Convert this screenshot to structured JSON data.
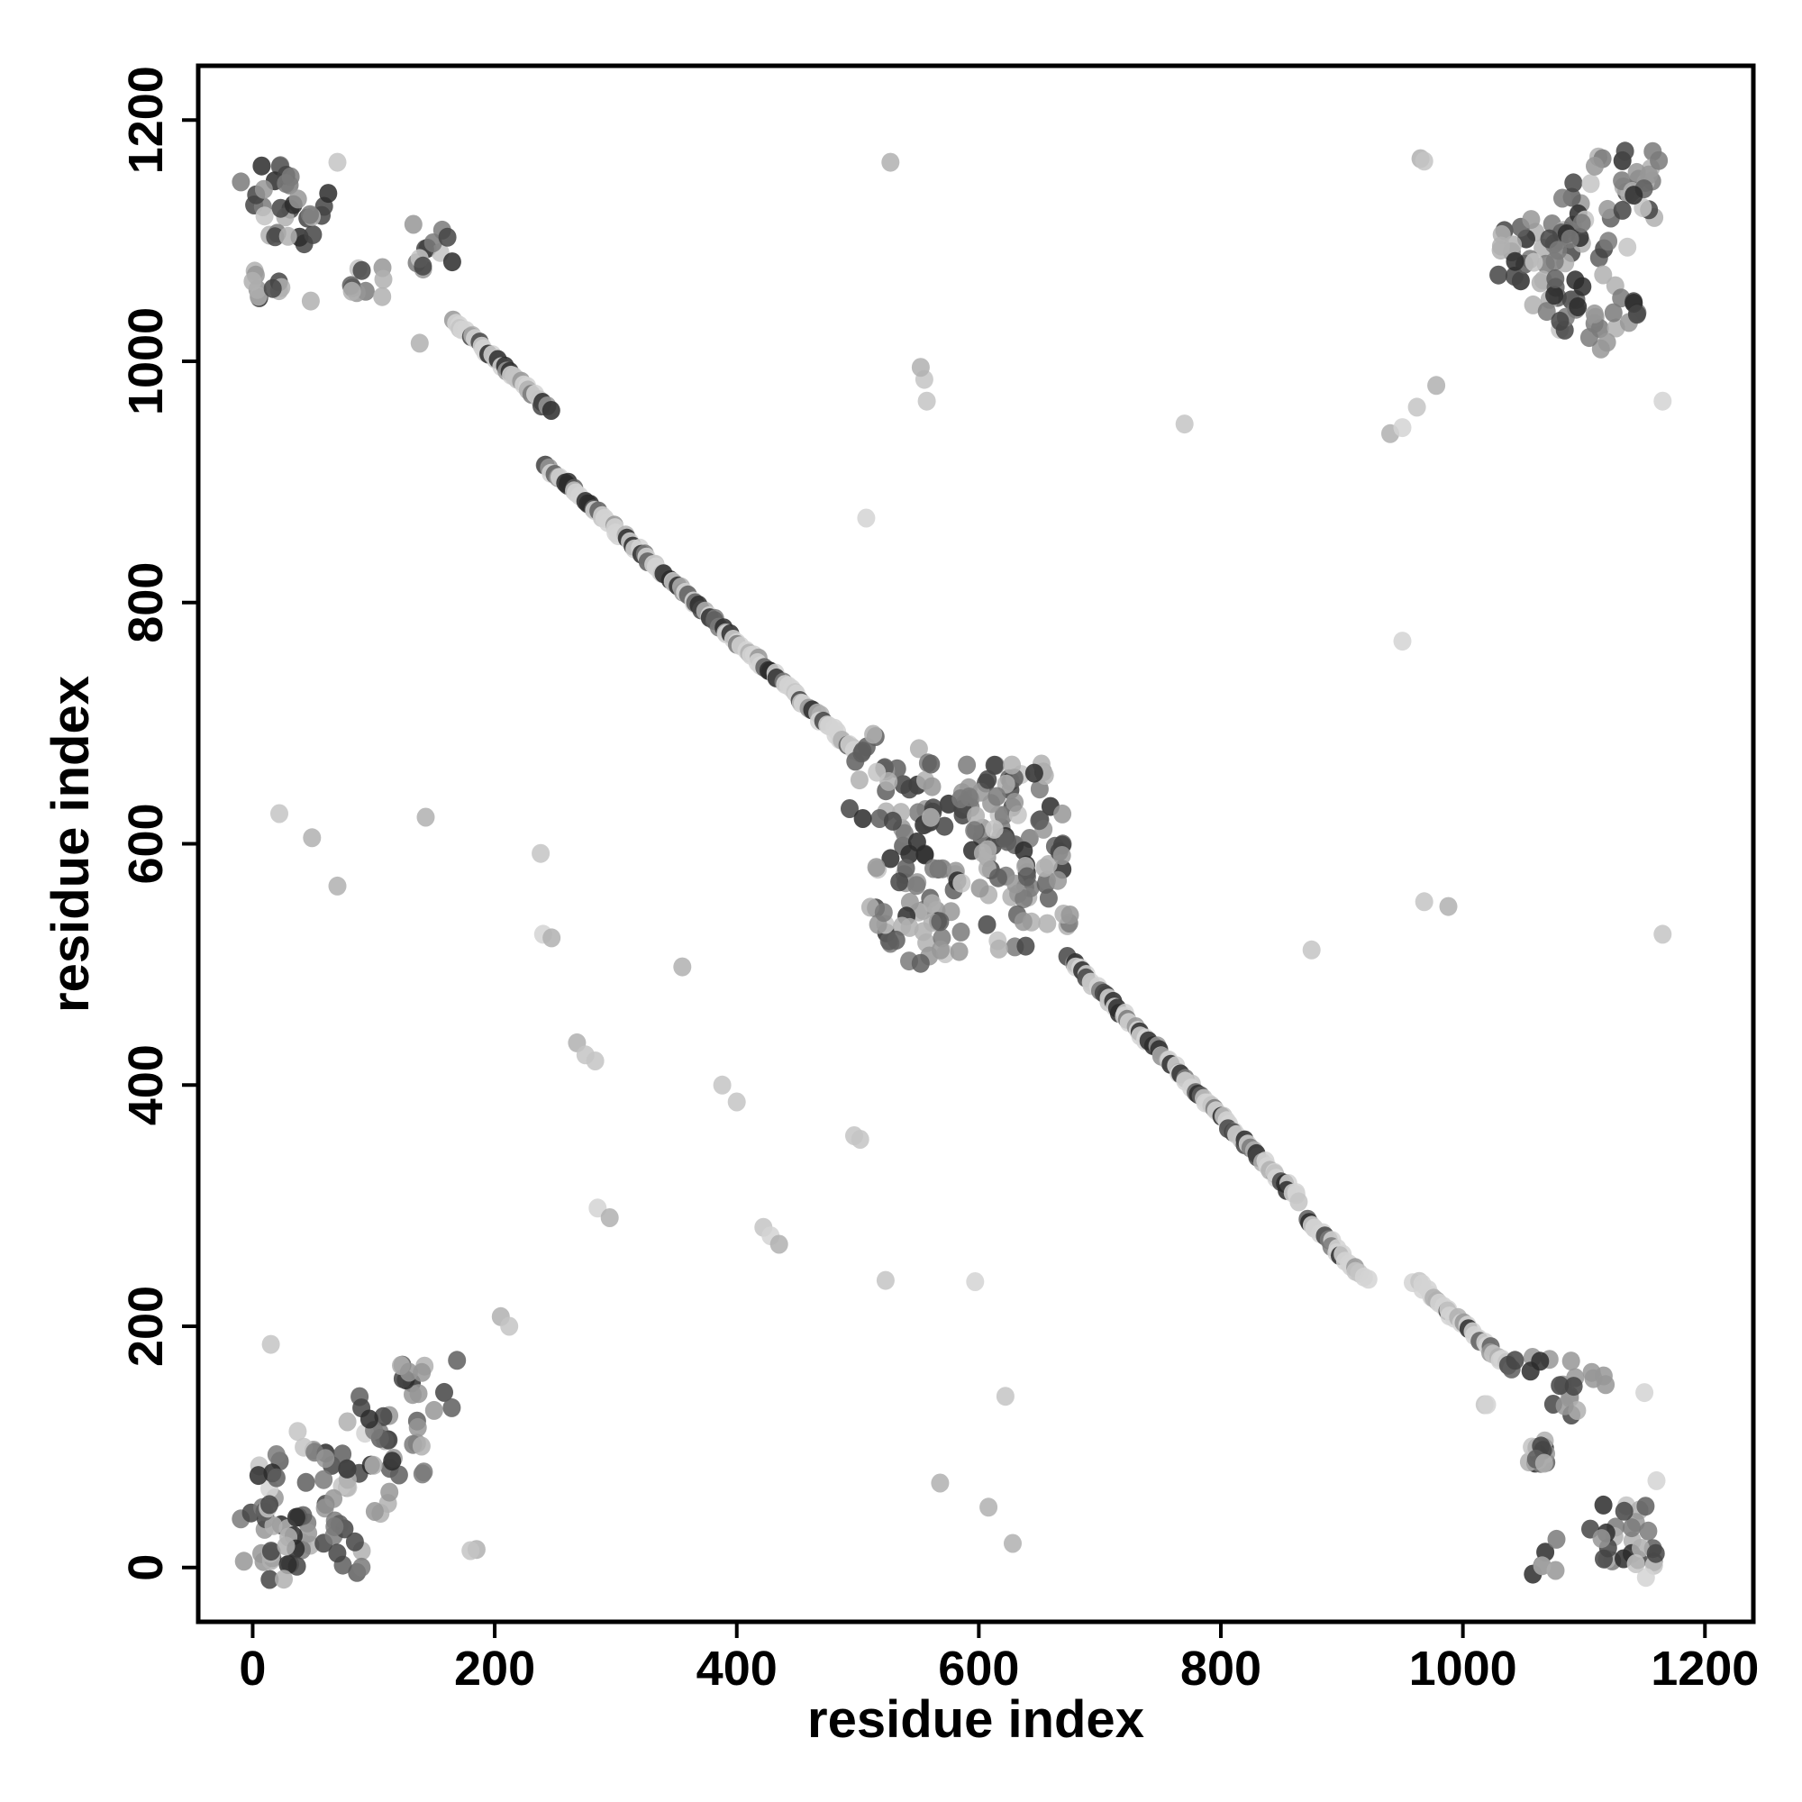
{
  "chart_data": {
    "type": "scatter",
    "title": "",
    "xlabel": "residue index",
    "ylabel": "residue index",
    "xlim": [
      -45,
      1240
    ],
    "ylim": [
      -45,
      1245
    ],
    "xticks": [
      0,
      200,
      400,
      600,
      800,
      1000,
      1200
    ],
    "yticks": [
      0,
      200,
      400,
      600,
      800,
      1000,
      1200
    ],
    "grid": false,
    "legend": "none",
    "colors": {
      "dark": "#2e2e2e",
      "mid": "#7d7d7d",
      "light": "#cbcbcb"
    },
    "series": [
      {
        "segments": [
          [
            165,
            1035,
            245,
            960
          ],
          [
            240,
            915,
            290,
            870
          ],
          [
            290,
            870,
            500,
            675
          ],
          [
            675,
            505,
            865,
            305
          ],
          [
            870,
            290,
            920,
            240
          ],
          [
            960,
            238,
            1040,
            165
          ]
        ],
        "clusters": [
          [
            525,
            660,
            32,
            14
          ],
          [
            545,
            640,
            30,
            12
          ],
          [
            530,
            600,
            28,
            16
          ],
          [
            560,
            560,
            22,
            14
          ],
          [
            535,
            545,
            30,
            16
          ],
          [
            555,
            520,
            24,
            10
          ],
          [
            600,
            615,
            40,
            22
          ],
          [
            585,
            645,
            30,
            12
          ],
          [
            620,
            640,
            35,
            14
          ],
          [
            640,
            650,
            30,
            10
          ],
          [
            615,
            585,
            30,
            16
          ],
          [
            610,
            540,
            30,
            14
          ],
          [
            655,
            555,
            25,
            14
          ],
          [
            650,
            600,
            20,
            10
          ],
          [
            1060,
            1080,
            35,
            22
          ],
          [
            1080,
            1060,
            40,
            20
          ],
          [
            1110,
            1120,
            30,
            16
          ],
          [
            1130,
            1140,
            30,
            12
          ],
          [
            1150,
            1155,
            20,
            10
          ],
          [
            1100,
            1040,
            30,
            12
          ],
          [
            1130,
            1045,
            20,
            8
          ],
          [
            1070,
            1100,
            30,
            10
          ],
          [
            10,
            1140,
            25,
            12
          ],
          [
            25,
            1120,
            25,
            12
          ],
          [
            10,
            1065,
            15,
            10
          ],
          [
            45,
            1135,
            20,
            8
          ],
          [
            145,
            1095,
            20,
            12
          ],
          [
            95,
            1065,
            15,
            8
          ],
          [
            20,
            30,
            30,
            22
          ],
          [
            40,
            60,
            40,
            22
          ],
          [
            75,
            80,
            40,
            20
          ],
          [
            110,
            110,
            35,
            22
          ],
          [
            145,
            150,
            25,
            14
          ],
          [
            90,
            20,
            25,
            10
          ],
          [
            30,
            10,
            20,
            10
          ],
          [
            1065,
            150,
            25,
            8
          ],
          [
            1100,
            145,
            20,
            12
          ],
          [
            1130,
            30,
            25,
            20
          ],
          [
            1075,
            5,
            20,
            6
          ],
          [
            1060,
            95,
            10,
            18
          ],
          [
            1150,
            10,
            20,
            8
          ]
        ],
        "outliers": [
          [
            527,
            1165
          ],
          [
            965,
            1168
          ],
          [
            968,
            1166
          ],
          [
            555,
            985
          ],
          [
            552,
            995
          ],
          [
            557,
            967
          ],
          [
            770,
            948
          ],
          [
            940,
            940
          ],
          [
            950,
            945
          ],
          [
            962,
            962
          ],
          [
            978,
            980
          ],
          [
            1165,
            967
          ],
          [
            507,
            870
          ],
          [
            950,
            768
          ],
          [
            22,
            625
          ],
          [
            143,
            622
          ],
          [
            49,
            605
          ],
          [
            70,
            565
          ],
          [
            238,
            592
          ],
          [
            240,
            525
          ],
          [
            247,
            522
          ],
          [
            355,
            498
          ],
          [
            968,
            552
          ],
          [
            988,
            548
          ],
          [
            1165,
            525
          ],
          [
            875,
            512
          ],
          [
            268,
            435
          ],
          [
            275,
            425
          ],
          [
            283,
            420
          ],
          [
            388,
            400
          ],
          [
            400,
            386
          ],
          [
            502,
            355
          ],
          [
            497,
            358
          ],
          [
            285,
            298
          ],
          [
            295,
            290
          ],
          [
            422,
            282
          ],
          [
            428,
            275
          ],
          [
            435,
            268
          ],
          [
            523,
            238
          ],
          [
            597,
            237
          ],
          [
            205,
            208
          ],
          [
            212,
            200
          ],
          [
            622,
            142
          ],
          [
            1018,
            135
          ],
          [
            568,
            70
          ],
          [
            608,
            50
          ],
          [
            628,
            20
          ],
          [
            15,
            185
          ],
          [
            138,
            1015
          ],
          [
            82,
            1058
          ],
          [
            108,
            1068
          ],
          [
            48,
            1050
          ],
          [
            70,
            1165
          ],
          [
            185,
            15
          ],
          [
            180,
            14
          ],
          [
            1160,
            72
          ],
          [
            1150,
            145
          ],
          [
            1020,
            135
          ]
        ]
      }
    ]
  }
}
